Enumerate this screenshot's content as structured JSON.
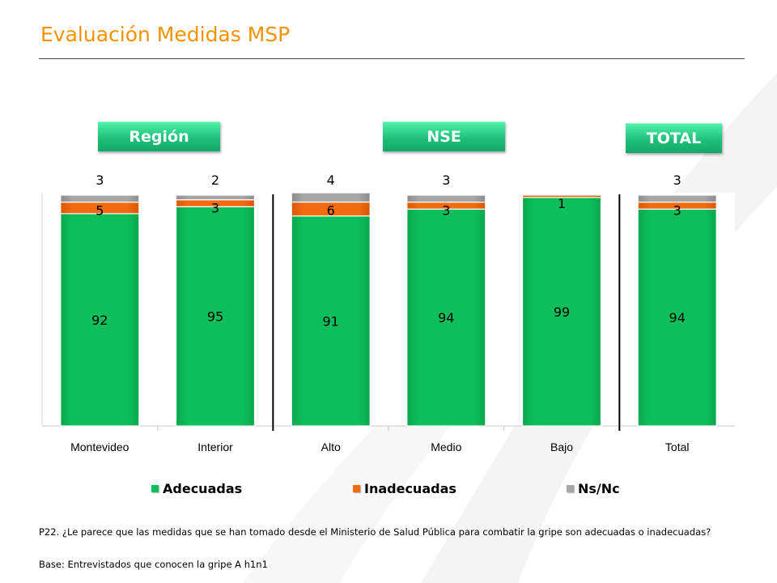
{
  "page": {
    "title": "Evaluación Medidas MSP",
    "accent_color": "#f39200"
  },
  "group_labels": {
    "region": "Región",
    "nse": "NSE",
    "total": "TOTAL"
  },
  "chart_data": {
    "type": "bar",
    "stacked": true,
    "orientation": "vertical",
    "categories": [
      "Montevideo",
      "Interior",
      "Alto",
      "Medio",
      "Bajo",
      "Total"
    ],
    "series": [
      {
        "name": "Adecuadas",
        "color": "#0cbf5a",
        "values": [
          92,
          95,
          91,
          94,
          99,
          94
        ],
        "labels": [
          "92",
          "95",
          "91",
          "94",
          "99",
          "94"
        ]
      },
      {
        "name": "Inadecuadas",
        "color": "#f26b0f",
        "values": [
          5,
          3,
          6,
          3,
          1,
          3
        ],
        "labels": [
          "5",
          "3",
          "6",
          "3",
          "1",
          "3"
        ]
      },
      {
        "name": "Ns/Nc",
        "color": "#a6a6a6",
        "values": [
          3,
          2,
          4,
          3,
          0,
          3
        ],
        "labels": [
          "3",
          "2",
          "4",
          "3",
          "",
          "3"
        ]
      }
    ],
    "ylim": [
      0,
      100
    ],
    "grid": false,
    "legend_position": "bottom",
    "group_separators_after": [
      "Interior",
      "Bajo"
    ]
  },
  "footnote": {
    "question": "P22. ¿Le parece que las medidas que se han tomado desde el Ministerio de Salud Pública para combatir la gripe son adecuadas o inadecuadas?",
    "base": "Base: Entrevistados que conocen la gripe A h1n1"
  }
}
